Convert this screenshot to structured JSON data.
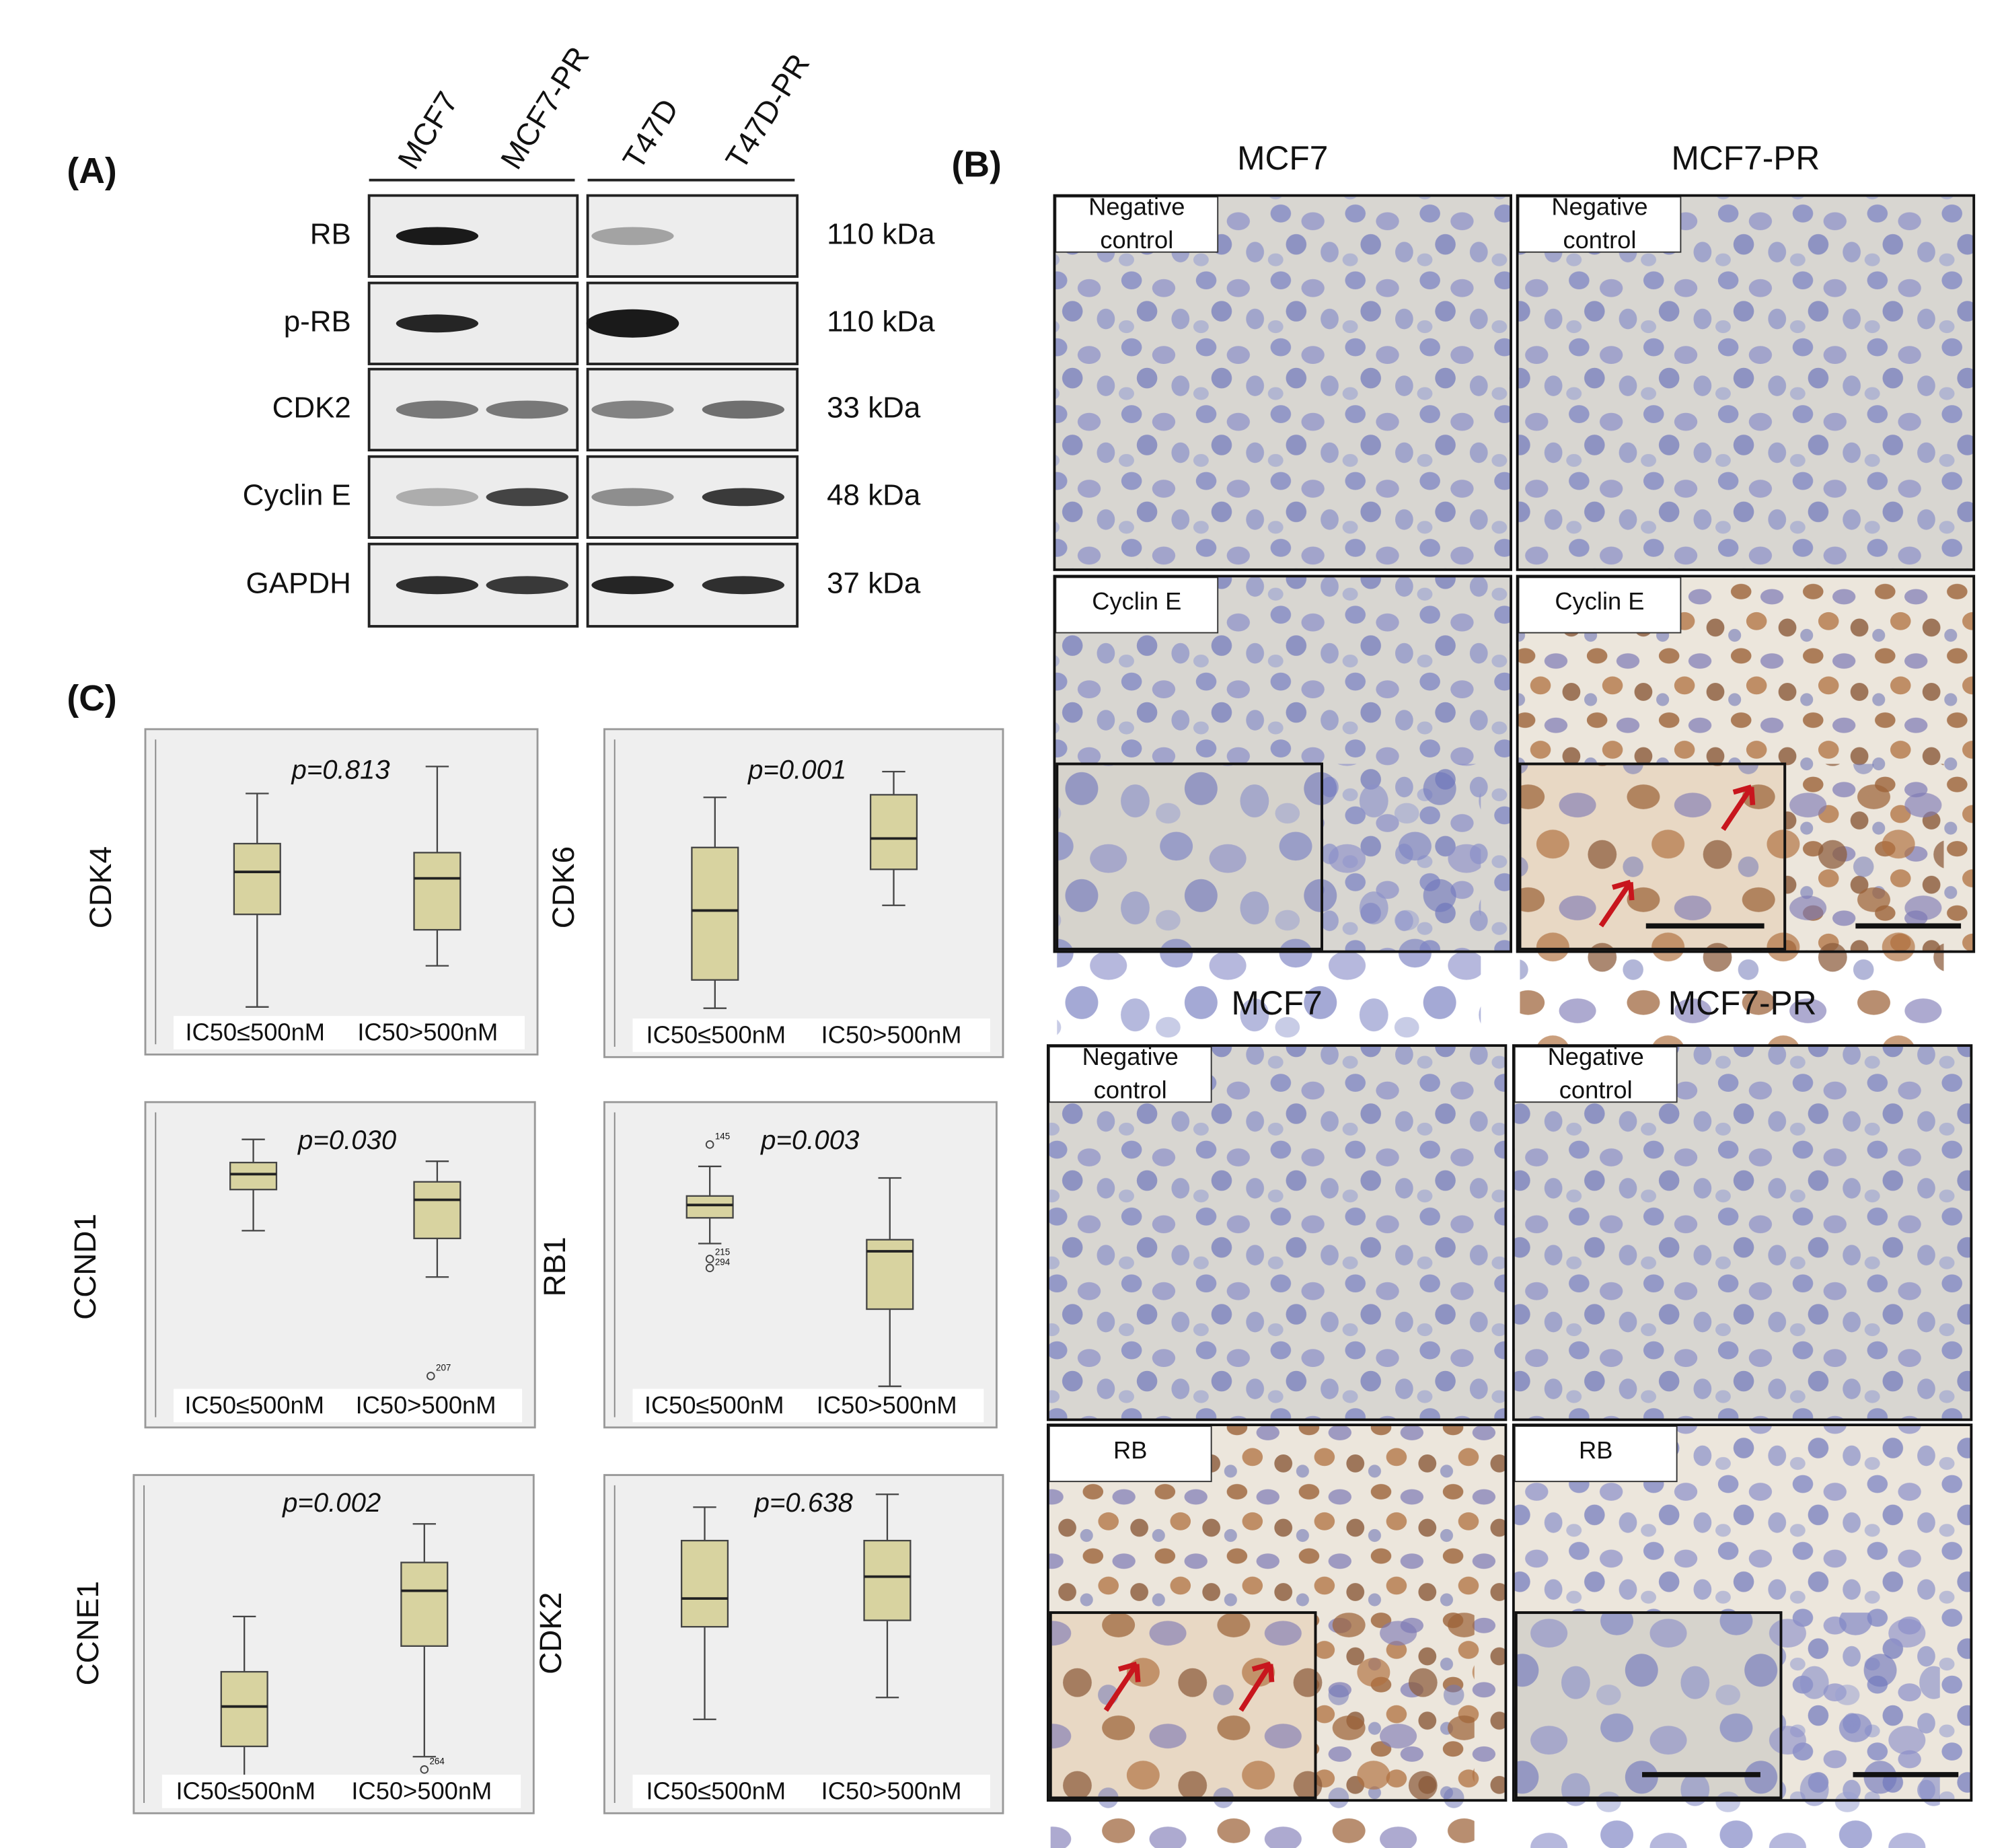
{
  "panel_a": {
    "label": "(A)",
    "lanes": [
      "MCF7",
      "MCF7-PR",
      "T47D",
      "T47D-PR"
    ],
    "proteins": [
      {
        "name": "RB",
        "size": "110 kDa"
      },
      {
        "name": "p-RB",
        "size": "110 kDa"
      },
      {
        "name": "CDK2",
        "size": "33 kDa"
      },
      {
        "name": "Cyclin E",
        "size": "48 kDa"
      },
      {
        "name": "GAPDH",
        "size": "37 kDa"
      }
    ]
  },
  "panel_b": {
    "label": "(B)",
    "top": {
      "columns": [
        "MCF7",
        "MCF7-PR"
      ],
      "rows": [
        [
          "Negative",
          "control"
        ],
        [
          "Cyclin E"
        ]
      ]
    },
    "bottom": {
      "columns": [
        "MCF7",
        "MCF7-PR"
      ],
      "rows": [
        [
          "Negative",
          "control"
        ],
        [
          "RB"
        ]
      ]
    }
  },
  "panel_c": {
    "label": "(C)",
    "plots": [
      {
        "gene": "CDK4",
        "p": "p=0.813",
        "groups": [
          "IC50≤500nM",
          "IC50>500nM"
        ],
        "outliers": []
      },
      {
        "gene": "CDK6",
        "p": "p=0.001",
        "groups": [
          "IC50≤500nM",
          "IC50>500nM"
        ],
        "outliers": []
      },
      {
        "gene": "CCND1",
        "p": "p=0.030",
        "groups": [
          "IC50≤500nM",
          "IC50>500nM"
        ],
        "outliers": [
          "207"
        ]
      },
      {
        "gene": "RB1",
        "p": "p=0.003",
        "groups": [
          "IC50≤500nM",
          "IC50>500nM"
        ],
        "outliers": [
          "145",
          "215",
          "294"
        ]
      },
      {
        "gene": "CCNE1",
        "p": "p=0.002",
        "groups": [
          "IC50≤500nM",
          "IC50>500nM"
        ],
        "outliers": [
          "264"
        ]
      },
      {
        "gene": "CDK2",
        "p": "p=0.638",
        "groups": [
          "IC50≤500nM",
          "IC50>500nM"
        ],
        "outliers": []
      }
    ]
  }
}
